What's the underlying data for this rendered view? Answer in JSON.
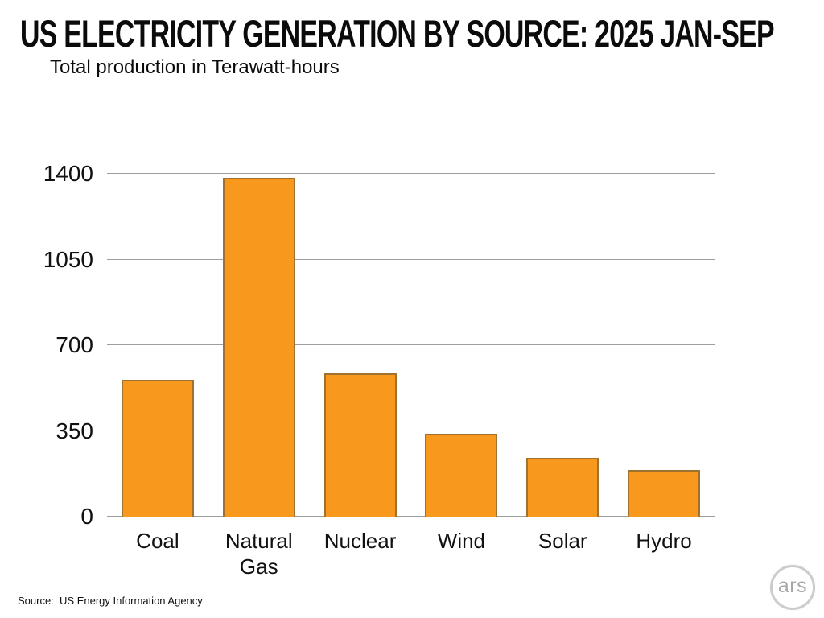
{
  "header": {
    "title": "US ELECTRICITY GENERATION BY SOURCE: 2025 JAN-SEP",
    "subtitle": "Total production in Terawatt-hours"
  },
  "footer": {
    "source": "Source:  US Energy Information Agency",
    "logo_text": "ars"
  },
  "colors": {
    "bar_fill": "#F8991D",
    "bar_border": "#A0712F",
    "gridline": "#9E9E9E",
    "text": "#111111",
    "logo_gray": "#A8A8A8"
  },
  "chart_data": {
    "type": "bar",
    "title": "US ELECTRICITY GENERATION BY SOURCE: 2025 JAN-SEP",
    "subtitle": "Total production in Terawatt-hours",
    "categories": [
      "Coal",
      "Natural Gas",
      "Nuclear",
      "Wind",
      "Solar",
      "Hydro"
    ],
    "values": [
      560,
      1385,
      585,
      340,
      240,
      190
    ],
    "unit": "TWh",
    "xlabel": "",
    "ylabel": "",
    "ylim": [
      0,
      1400
    ],
    "yticks": [
      0,
      350,
      700,
      1050,
      1400
    ],
    "grid": true,
    "legend": false
  }
}
